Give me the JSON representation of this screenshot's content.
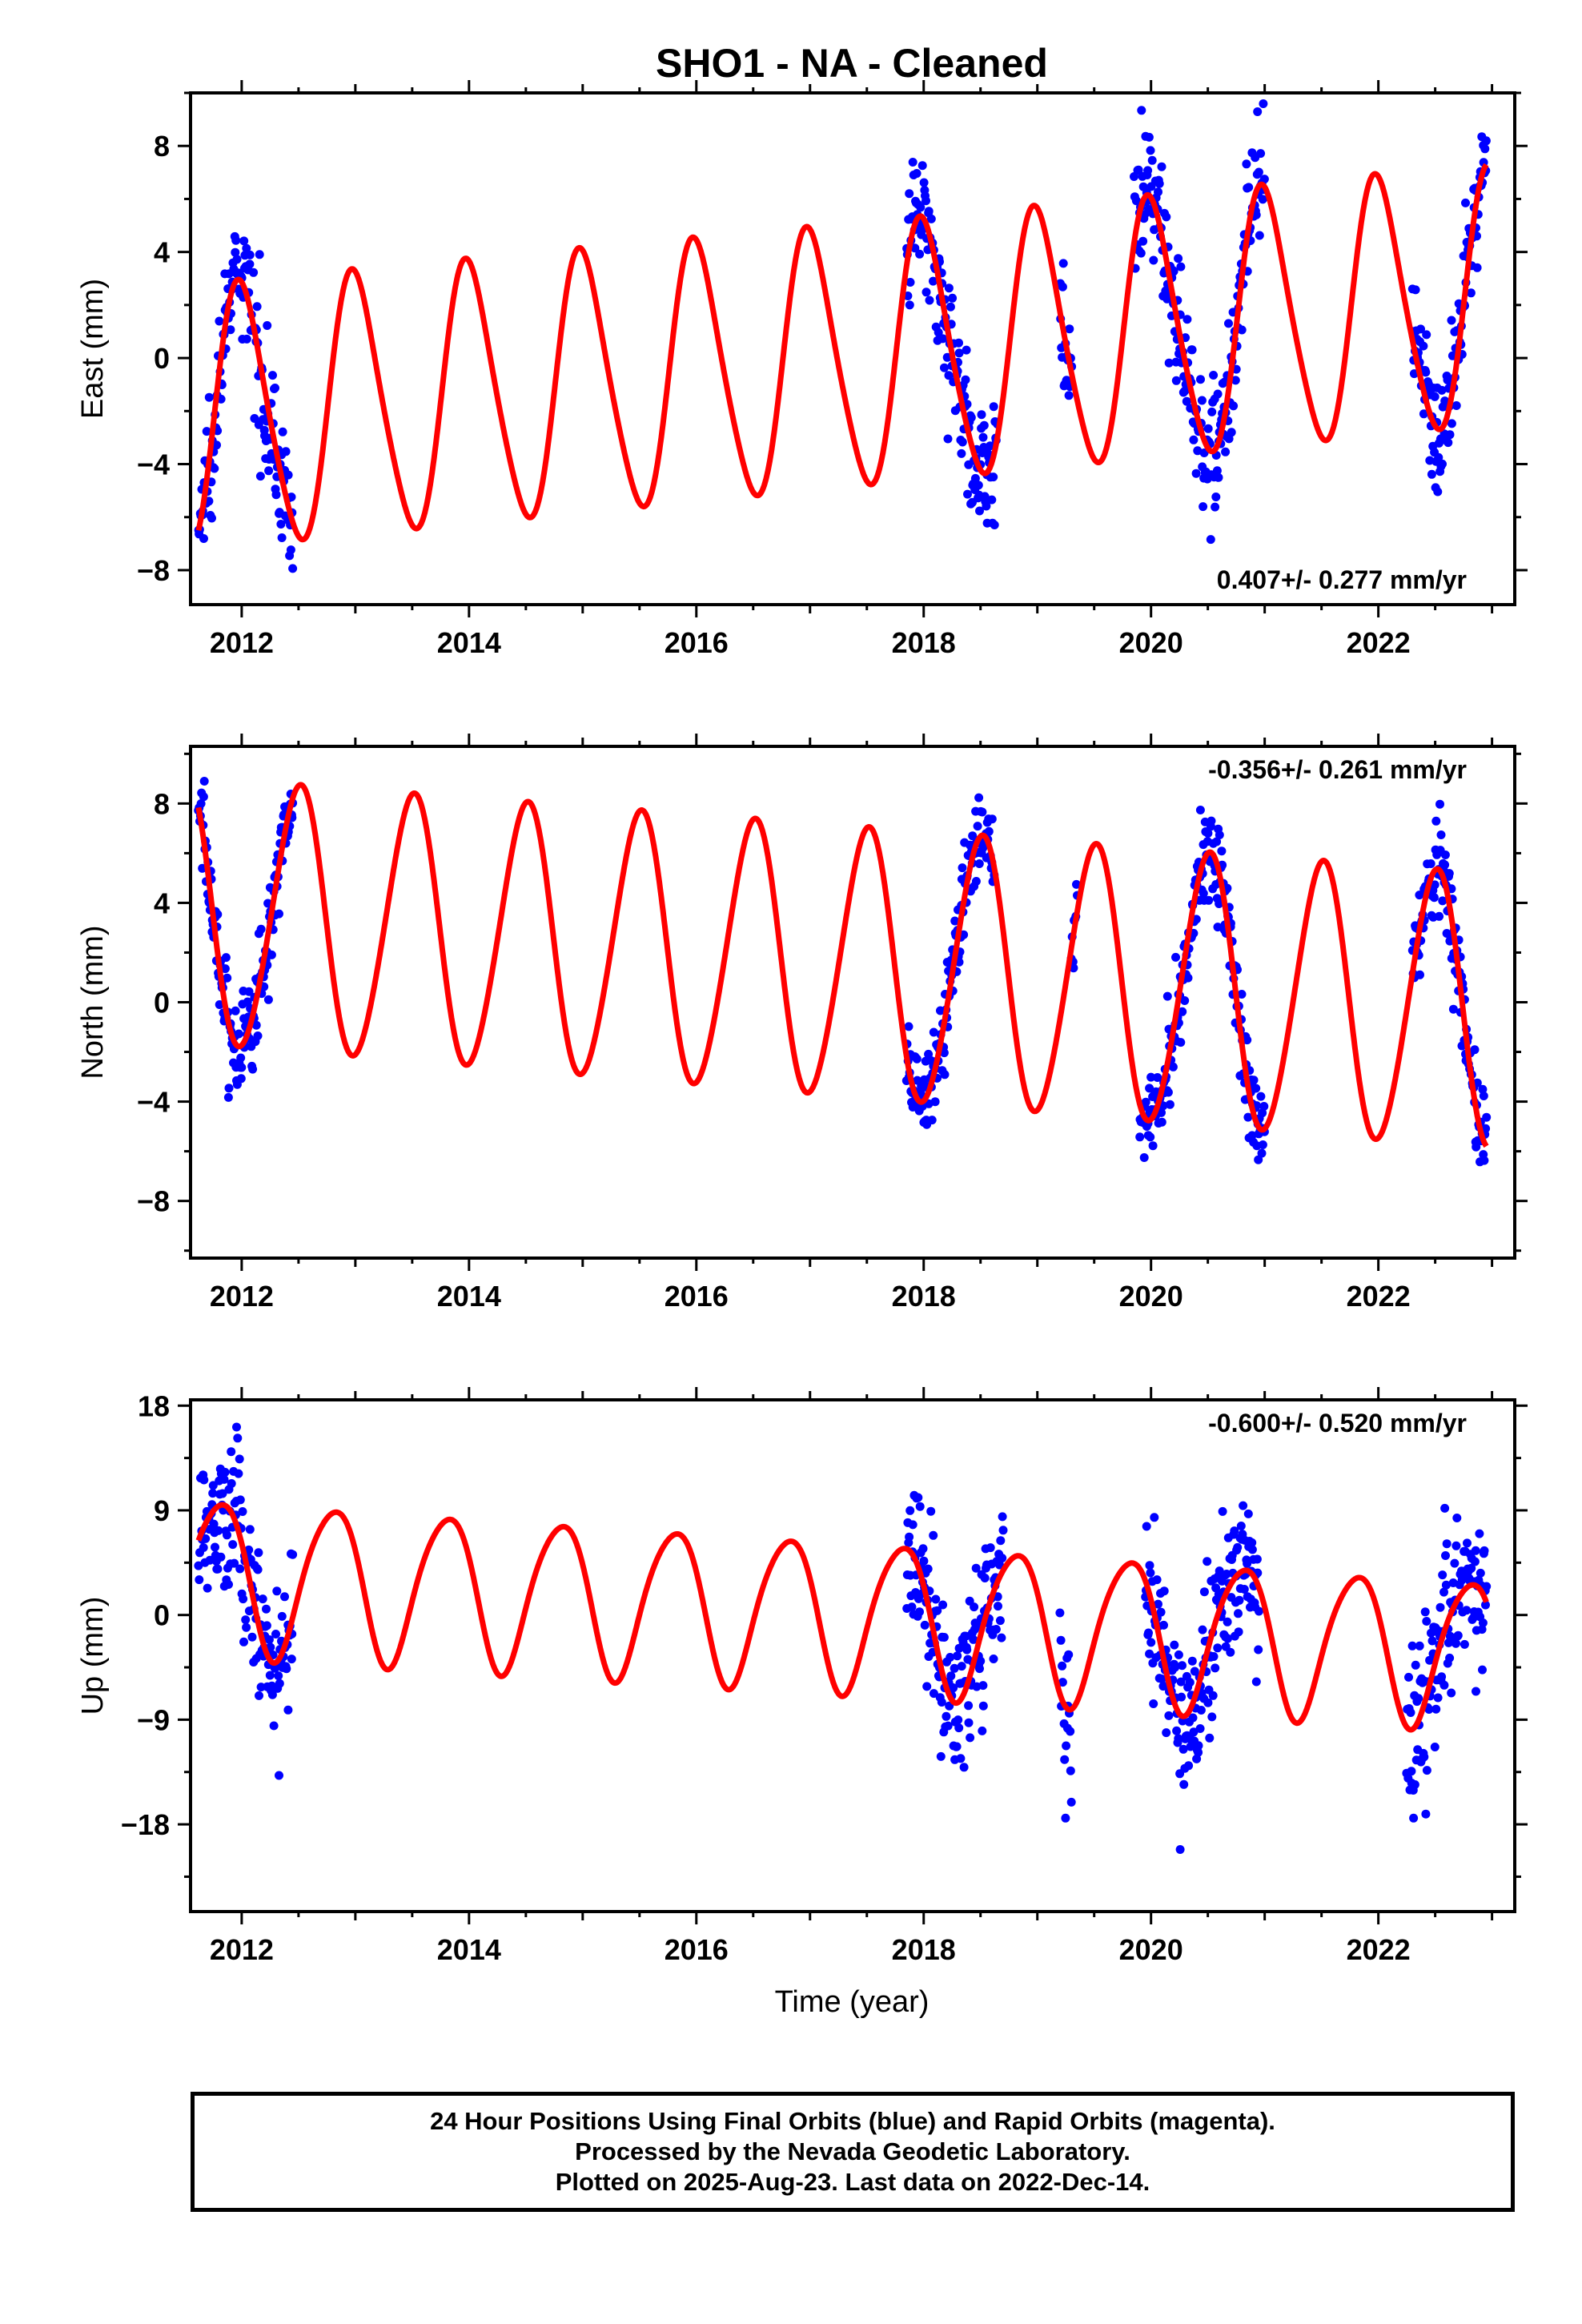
{
  "title": "SHO1  - NA - Cleaned",
  "colors": {
    "final_orbits": "#0000ff",
    "model": "#ff0000",
    "axes": "#000000"
  },
  "x_axis": {
    "label": "Time (year)",
    "range": [
      2011.55,
      2023.2
    ],
    "ticks": [
      2012,
      2014,
      2016,
      2018,
      2020,
      2022
    ],
    "tick_labels": [
      "2012",
      "2014",
      "2016",
      "2018",
      "2020",
      "2022"
    ]
  },
  "chart_data": [
    {
      "type": "scatter",
      "component": "east",
      "ylabel": "East (mm)",
      "ylim": [
        -9.3,
        10
      ],
      "yticks": [
        -8,
        -4,
        0,
        4,
        8
      ],
      "ytick_labels": [
        "−8",
        "−4",
        "0",
        "4",
        "8"
      ],
      "rate_text": "0.407+/- 0.277 mm/yr",
      "rate_position": "bottom-right",
      "data_segments": [
        [
          2011.62,
          2012.45
        ],
        [
          2017.85,
          2018.65
        ],
        [
          2019.2,
          2019.3
        ],
        [
          2019.85,
          2021.0
        ],
        [
          2022.3,
          2022.95
        ]
      ],
      "scatter_sd": 1.2,
      "model": {
        "rate": 0.407,
        "ref_year": 2017.2,
        "offset": -0.1,
        "amp_start": 4.9,
        "amp_end": 4.8,
        "phase_year": 2012.0,
        "semi_amp": 0.6,
        "semi_phase_year": 2012.4
      }
    },
    {
      "type": "scatter",
      "component": "north",
      "ylabel": "North (mm)",
      "ylim": [
        -10.3,
        10.3
      ],
      "yticks": [
        -8,
        -4,
        0,
        4,
        8
      ],
      "ytick_labels": [
        "−8",
        "−4",
        "0",
        "4",
        "8"
      ],
      "rate_text": "-0.356+/- 0.261 mm/yr",
      "rate_position": "top-right",
      "data_segments": [
        [
          2011.62,
          2012.45
        ],
        [
          2017.85,
          2018.62
        ],
        [
          2019.3,
          2019.35
        ],
        [
          2019.9,
          2021.0
        ],
        [
          2022.3,
          2022.95
        ]
      ],
      "scatter_sd": 1.0,
      "model": {
        "rate": -0.356,
        "ref_year": 2017.2,
        "offset": 1.6,
        "amp_start": 5.3,
        "amp_end": 5.5,
        "phase_year": 2012.5,
        "semi_amp": 0.4,
        "semi_phase_year": 2012.1
      }
    },
    {
      "type": "scatter",
      "component": "up",
      "ylabel": "Up (mm)",
      "ylim": [
        -25.5,
        18.5
      ],
      "yticks": [
        -18,
        -9,
        0,
        9,
        18
      ],
      "ytick_labels": [
        "−18",
        "−9",
        "0",
        "9",
        "18"
      ],
      "rate_text": "-0.600+/- 0.520 mm/yr",
      "rate_position": "top-right",
      "data_segments": [
        [
          2011.62,
          2012.45
        ],
        [
          2017.85,
          2018.7
        ],
        [
          2019.2,
          2019.3
        ],
        [
          2019.95,
          2020.95
        ],
        [
          2022.25,
          2022.95
        ]
      ],
      "scatter_sd": 3.5,
      "model": {
        "rate": -0.6,
        "ref_year": 2017.2,
        "offset": 0.2,
        "amp_start": 6.6,
        "amp_end": 6.3,
        "phase_year": 2011.8,
        "semi_amp": 0.8,
        "semi_phase_year": 2012.0
      }
    }
  ],
  "footer": {
    "line1": "24 Hour Positions Using Final Orbits (blue) and Rapid Orbits (magenta).",
    "line2": "Processed by the Nevada Geodetic Laboratory.",
    "line3": "Plotted on 2025-Aug-23. Last data on 2022-Dec-14."
  }
}
